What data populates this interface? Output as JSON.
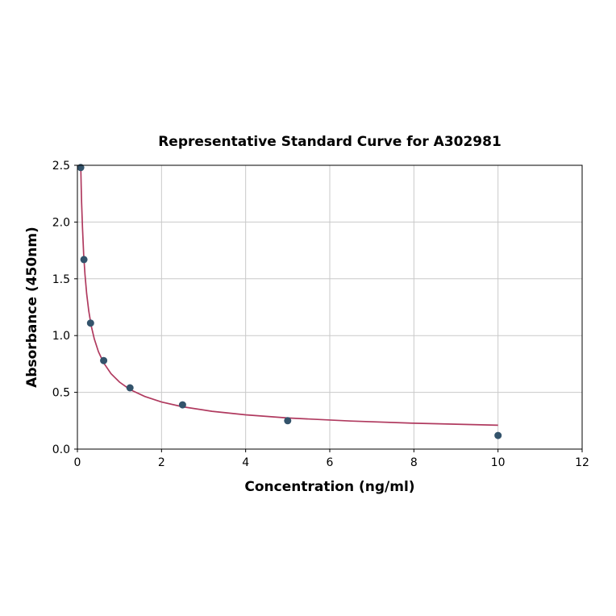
{
  "chart_data": {
    "type": "scatter",
    "title": "Representative Standard Curve for A302981",
    "xlabel": "Concentration (ng/ml)",
    "ylabel": "Absorbance (450nm)",
    "xlim": [
      0,
      12
    ],
    "ylim": [
      0,
      2.5
    ],
    "xticks": [
      0,
      2,
      4,
      6,
      8,
      10,
      12
    ],
    "xtick_labels": [
      "0",
      "2",
      "4",
      "6",
      "8",
      "10",
      "12"
    ],
    "yticks": [
      0,
      0.5,
      1,
      1.5,
      2,
      2.5
    ],
    "ytick_labels": [
      "0.0",
      "0.5",
      "1.0",
      "1.5",
      "2.0",
      "2.5"
    ],
    "grid": true,
    "legend": "none",
    "colors": {
      "points": "#33536b",
      "curve": "#b03a5f",
      "grid": "#c9c9c9",
      "axis": "#000000",
      "background": "#ffffff"
    },
    "series": [
      {
        "name": "standard-points",
        "type": "scatter",
        "x": [
          0.078,
          0.156,
          0.3125,
          0.625,
          1.25,
          2.5,
          5,
          10
        ],
        "y": [
          2.48,
          1.67,
          1.11,
          0.78,
          0.54,
          0.39,
          0.25,
          0.12
        ]
      },
      {
        "name": "fit-curve",
        "type": "line",
        "x": [
          0.07,
          0.08,
          0.09,
          0.1,
          0.12,
          0.15,
          0.18,
          0.22,
          0.27,
          0.33,
          0.4,
          0.5,
          0.625,
          0.8,
          1.0,
          1.25,
          1.6,
          2.0,
          2.5,
          3.2,
          4.0,
          5.0,
          6.5,
          8.0,
          10.0
        ],
        "y": [
          2.5,
          2.483,
          2.315,
          2.174,
          1.952,
          1.711,
          1.538,
          1.368,
          1.216,
          1.084,
          0.972,
          0.858,
          0.759,
          0.664,
          0.59,
          0.525,
          0.464,
          0.415,
          0.373,
          0.333,
          0.302,
          0.274,
          0.247,
          0.228,
          0.21
        ]
      }
    ]
  }
}
